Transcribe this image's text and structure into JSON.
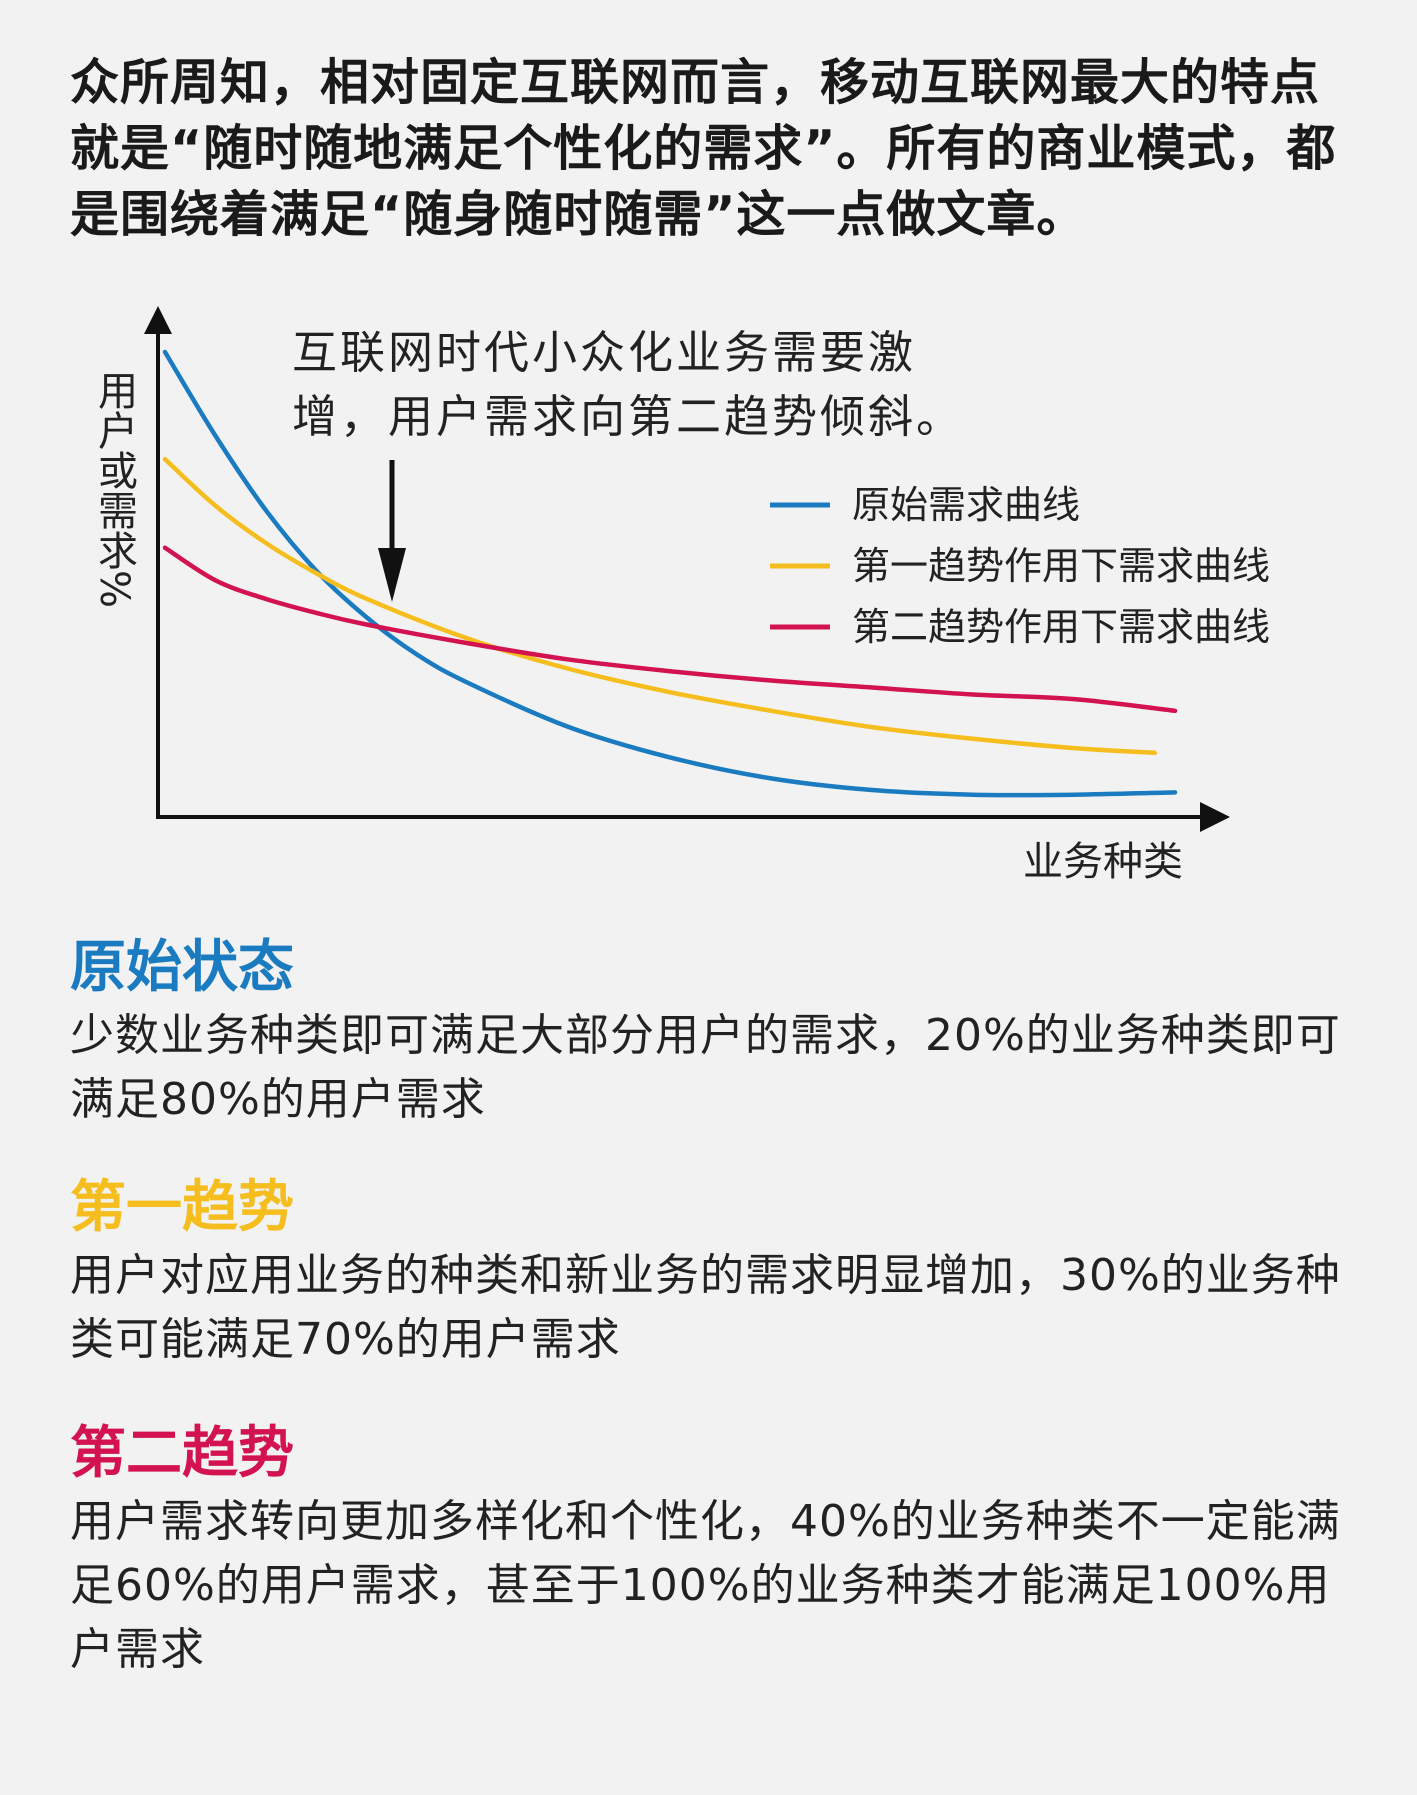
{
  "intro": "众所周知，相对固定互联网而言，移动互联网最大的特点就是“随时随地满足个性化的需求”。所有的商业模式，都是围绕着满足“随身随时随需”这一点做文章。",
  "colors": {
    "original": "#1a7bc1",
    "first": "#f5be1e",
    "second": "#d3134f",
    "axis": "#111111"
  },
  "chart_data": {
    "type": "line",
    "xlabel": "业务种类",
    "ylabel": "用户或需求%",
    "annotation": {
      "line1": "互联网时代小众化业务需要激",
      "line2": "增，用户需求向第二趋势倾斜。"
    },
    "legend_position": "top-right",
    "grid": false,
    "xlim": [
      0,
      100
    ],
    "ylim": [
      0,
      100
    ],
    "series": [
      {
        "name": "原始需求曲线",
        "color": "#1a7bc1",
        "x": [
          0,
          5,
          10,
          15,
          20,
          25,
          30,
          40,
          50,
          60,
          70,
          80,
          90,
          100
        ],
        "y": [
          100,
          82,
          66,
          53,
          43,
          35,
          29,
          19.5,
          13,
          8.5,
          6,
          5,
          5,
          5.5
        ]
      },
      {
        "name": "第一趋势作用下需求曲线",
        "color": "#f5be1e",
        "x": [
          0,
          5,
          10,
          15,
          20,
          30,
          40,
          50,
          60,
          70,
          80,
          90,
          98
        ],
        "y": [
          77,
          67,
          59,
          52.5,
          47,
          38.5,
          32,
          27,
          23,
          19.5,
          17,
          15,
          14
        ]
      },
      {
        "name": "第二趋势作用下需求曲线",
        "color": "#d3134f",
        "x": [
          0,
          5,
          10,
          15,
          20,
          30,
          40,
          50,
          60,
          70,
          80,
          90,
          100
        ],
        "y": [
          58,
          51,
          47,
          44,
          41.5,
          37.5,
          34,
          31.5,
          29.5,
          28,
          26.5,
          25.5,
          23
        ]
      }
    ]
  },
  "sections": {
    "original": {
      "title": "原始状态",
      "text": "少数业务种类即可满足大部分用户的需求，20%的业务种类即可满足80%的用户需求"
    },
    "first": {
      "title": "第一趋势",
      "text": "用户对应用业务的种类和新业务的需求明显增加，30%的业务种类可能满足70%的用户需求"
    },
    "second": {
      "title": "第二趋势",
      "text": "用户需求转向更加多样化和个性化，40%的业务种类不一定能满足60%的用户需求，甚至于100%的业务种类才能满足100%用户需求"
    }
  }
}
